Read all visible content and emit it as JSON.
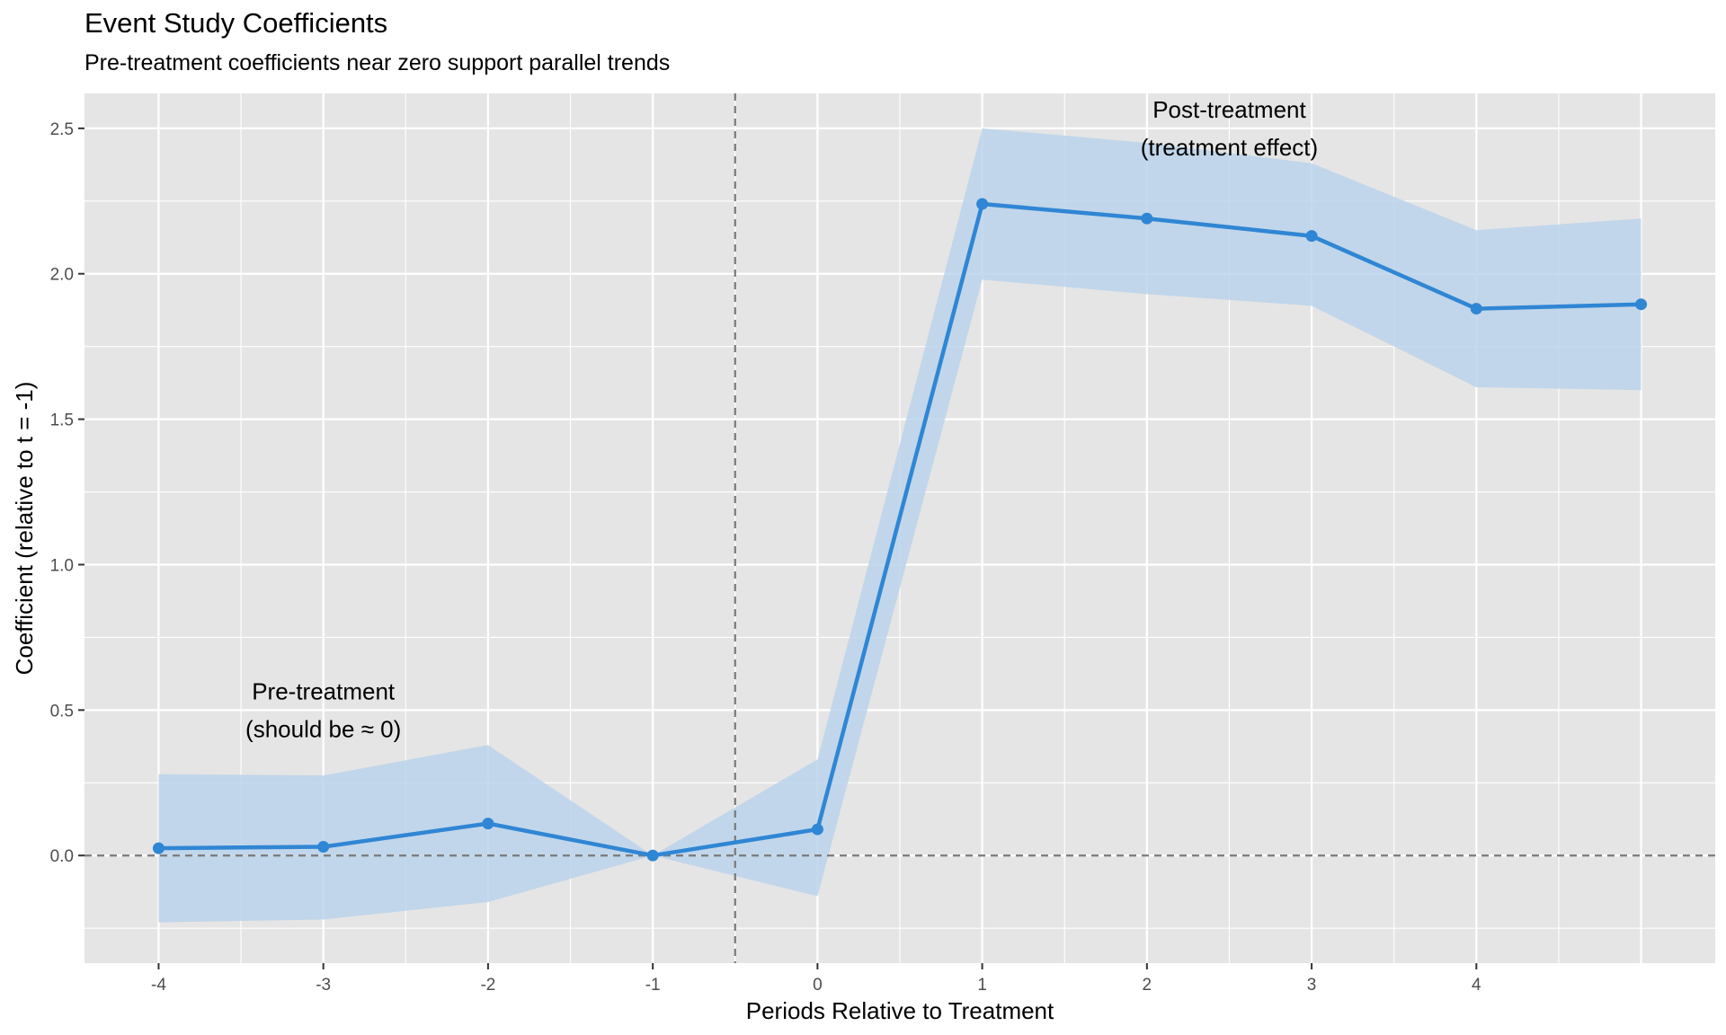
{
  "chart_data": {
    "type": "line",
    "title": "Event Study Coefficients",
    "subtitle": "Pre-treatment coefficients near zero support parallel trends",
    "xlabel": "Periods Relative to Treatment",
    "ylabel": "Coefficient (relative to t = -1)",
    "x": [
      -4,
      -3,
      -2,
      -1,
      0,
      1,
      2,
      3,
      4,
      5
    ],
    "x_ticks": [
      "-4",
      "-3",
      "-2",
      "-1",
      "0",
      "1",
      "2",
      "3",
      "4"
    ],
    "y_ticks": [
      "0.0",
      "0.5",
      "1.0",
      "1.5",
      "2.0",
      "2.5"
    ],
    "xlim": [
      -4.45,
      5.45
    ],
    "ylim": [
      -0.37,
      2.62
    ],
    "series": [
      {
        "values": [
          0.025,
          0.03,
          0.11,
          0.0,
          0.09,
          2.24,
          2.19,
          2.13,
          1.88,
          1.895
        ],
        "lower": [
          -0.23,
          -0.22,
          -0.16,
          0.0,
          -0.14,
          1.98,
          1.93,
          1.89,
          1.61,
          1.6
        ],
        "upper": [
          0.28,
          0.275,
          0.38,
          0.0,
          0.33,
          2.5,
          2.45,
          2.38,
          2.15,
          2.19
        ]
      }
    ],
    "reference_lines": {
      "horizontal_y": 0,
      "vertical_x": -0.5
    },
    "annotations": [
      {
        "lines": [
          "Pre-treatment",
          "(should be ≈ 0)"
        ],
        "x": -3,
        "y": 0.5
      },
      {
        "lines": [
          "Post-treatment",
          "(treatment effect)"
        ],
        "x": 2.5,
        "y": 2.5
      }
    ],
    "colors": {
      "line": "#2f86d4",
      "ribbon": "#b8d2ea",
      "panel": "#e5e5e5",
      "grid": "#ffffff",
      "refline": "#7a7a7a"
    },
    "grid": true,
    "legend": "none"
  }
}
